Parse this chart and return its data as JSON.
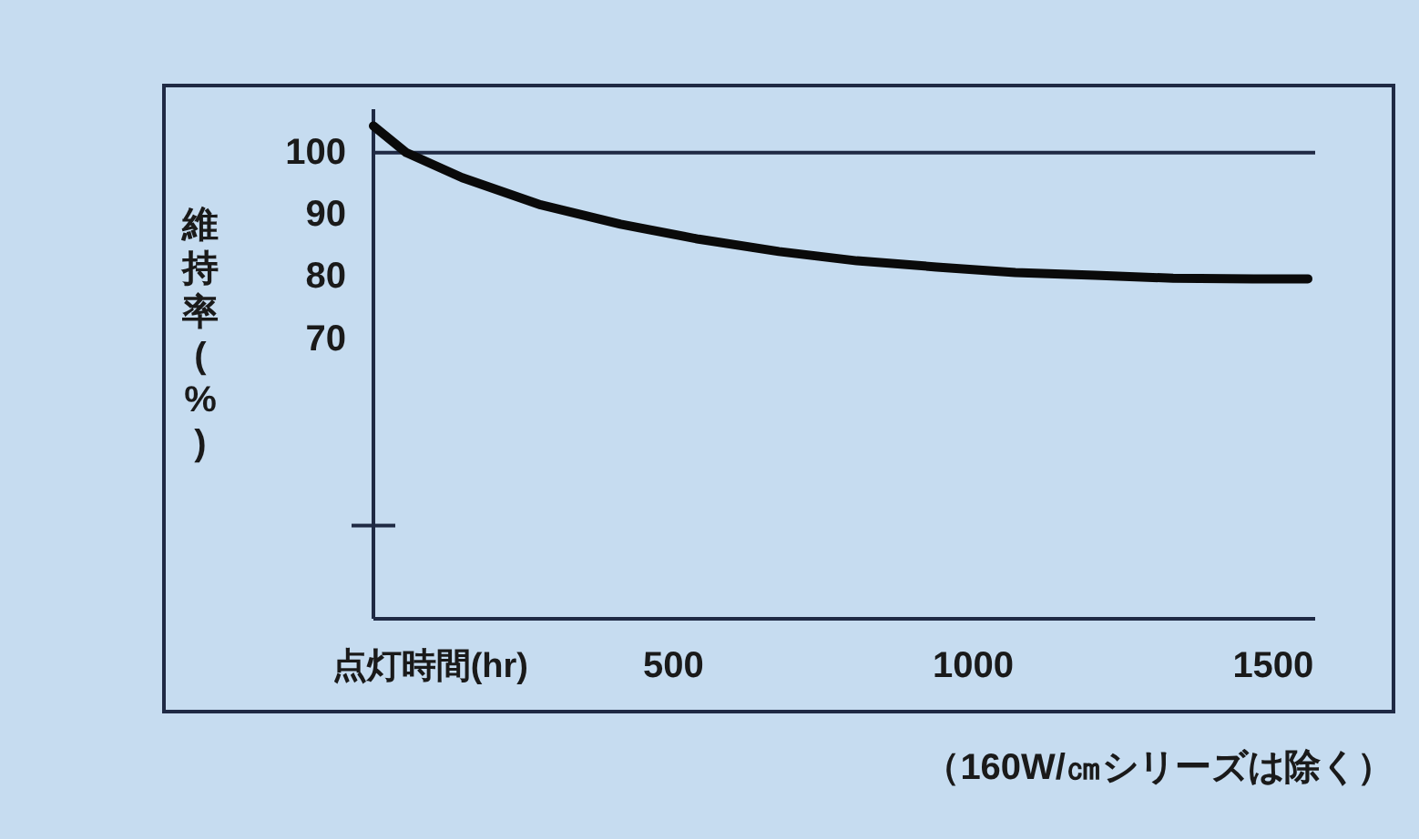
{
  "chart_data": {
    "type": "line",
    "xlabel": "点灯時間(hr)",
    "ylabel": "維持率(%)",
    "annotations": [
      "（160W/㎝シリーズは除く）"
    ],
    "xlim": [
      0,
      1570
    ],
    "xticks": [
      500,
      1000,
      1500
    ],
    "ylim": [
      25,
      107
    ],
    "yticks": [
      100,
      90,
      80,
      70,
      {
        "value": 40,
        "label": null
      }
    ],
    "ref_lines": [
      {
        "axis": "y",
        "value": 100,
        "color": "#1f2a44"
      }
    ],
    "series": [
      {
        "color": "#0a0a0a",
        "x": [
          0,
          55,
          148,
          279,
          412,
          542,
          676,
          806,
          939,
          1070,
          1203,
          1333,
          1467,
          1558
        ],
        "values": [
          104.3,
          100,
          96,
          91.6,
          88.5,
          86.1,
          84.1,
          82.6,
          81.6,
          80.7,
          80.3,
          79.8,
          79.7,
          79.7
        ]
      }
    ],
    "grid": false,
    "marker": "none",
    "line_style": "solid"
  }
}
